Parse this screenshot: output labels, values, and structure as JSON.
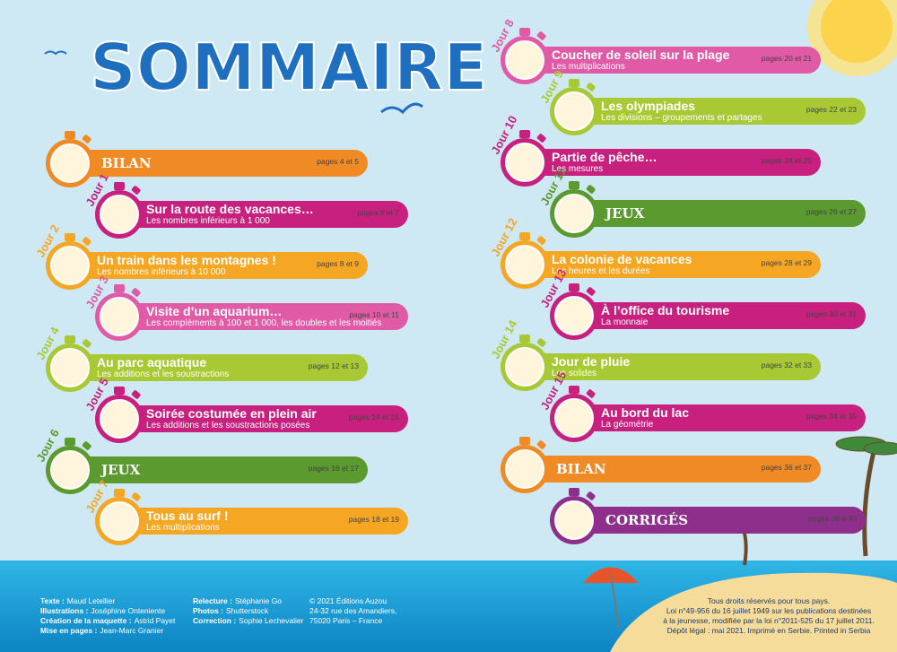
{
  "heading": "SOMMAIRE",
  "left": [
    {
      "title": "BILAN",
      "pages": "pages 4 et 5",
      "color": "#f08a24",
      "special": true
    },
    {
      "day": "Jour 1",
      "title": "Sur la route des vacances…",
      "subtitle": "Les nombres inférieurs à 1 000",
      "pages": "pages 6 et 7",
      "color": "#c8207e"
    },
    {
      "day": "Jour 2",
      "title": "Un train dans les montagnes !",
      "subtitle": "Les nombres inférieurs à 10 000",
      "pages": "pages 8 et 9",
      "color": "#f5a623"
    },
    {
      "day": "Jour 3",
      "title": "Visite d’un aquarium…",
      "subtitle": "Les compléments à 100 et 1 000, les doubles et les moitiés",
      "pages": "pages 10 et 11",
      "color": "#e05aa6"
    },
    {
      "day": "Jour 4",
      "title": "Au parc aquatique",
      "subtitle": "Les additions et les soustractions",
      "pages": "pages 12 et 13",
      "color": "#a9c934"
    },
    {
      "day": "Jour 5",
      "title": "Soirée costumée en plein air",
      "subtitle": "Les additions et les soustractions posées",
      "pages": "pages 14 et 15",
      "color": "#c8207e"
    },
    {
      "day": "Jour 6",
      "title": "JEUX",
      "pages": "pages 16 et 17",
      "color": "#5a9a2e",
      "special": true
    },
    {
      "day": "Jour 7",
      "title": "Tous au surf !",
      "subtitle": "Les multiplications",
      "pages": "pages 18 et 19",
      "color": "#f5a623"
    }
  ],
  "right": [
    {
      "day": "Jour 8",
      "title": "Coucher de soleil sur la plage",
      "subtitle": "Les multiplications",
      "pages": "pages 20 et 21",
      "color": "#e05aa6"
    },
    {
      "day": "Jour 9",
      "title": "Les olympiades",
      "subtitle": "Les divisions – groupements et partages",
      "pages": "pages 22 et 23",
      "color": "#a9c934"
    },
    {
      "day": "Jour 10",
      "title": "Partie de pêche…",
      "subtitle": "Les mesures",
      "pages": "pages 24 et 25",
      "color": "#c8207e"
    },
    {
      "day": "Jour 11",
      "title": "JEUX",
      "pages": "pages 26 et 27",
      "color": "#5a9a2e",
      "special": true
    },
    {
      "day": "Jour 12",
      "title": "La colonie de vacances",
      "subtitle": "Les heures et les durées",
      "pages": "pages 28 et 29",
      "color": "#f5a623"
    },
    {
      "day": "Jour 13",
      "title": "À l’office du tourisme",
      "subtitle": "La monnaie",
      "pages": "pages 30 et 31",
      "color": "#c8207e"
    },
    {
      "day": "Jour 14",
      "title": "Jour de pluie",
      "subtitle": "Les solides",
      "pages": "pages 32 et 33",
      "color": "#a9c934"
    },
    {
      "day": "Jour 15",
      "title": "Au bord du lac",
      "subtitle": "La géométrie",
      "pages": "pages 34 et 35",
      "color": "#c8207e"
    },
    {
      "title": "BILAN",
      "pages": "pages 36 et 37",
      "color": "#f08a24",
      "special": true
    },
    {
      "title": "CORRIGÉS",
      "pages": "pages 38 à 40",
      "color": "#8e2f8c",
      "special": true
    }
  ],
  "credits": [
    {
      "label": "Texte :",
      "name": "Maud Letellier"
    },
    {
      "label": "Illustrations :",
      "name": "Joséphine Onteniente"
    },
    {
      "label": "Création de la maquette :",
      "name": "Astrid Payet"
    },
    {
      "label": "Mise en pages :",
      "name": "Jean-Marc Granier"
    },
    {
      "label": "Relecture :",
      "name": "Stéphanie Go"
    },
    {
      "label": "Photos :",
      "name": "Shutterstock"
    },
    {
      "label": "Correction :",
      "name": "Sophie Lechevalier"
    }
  ],
  "publisher": [
    "© 2021 Éditions Auzou",
    "24-32 rue des Amandiers,",
    "75020 Paris – France"
  ],
  "legal": [
    "Tous droits réservés pour tous pays.",
    "Loi n°49-956 du 16 juillet 1949 sur les publications destinées",
    "à la jeunesse, modifiée par la loi n°2011-525 du 17 juillet 2011.",
    "Dépôt légal : mai 2021. Imprimé en Serbie. Printed in Serbia"
  ]
}
